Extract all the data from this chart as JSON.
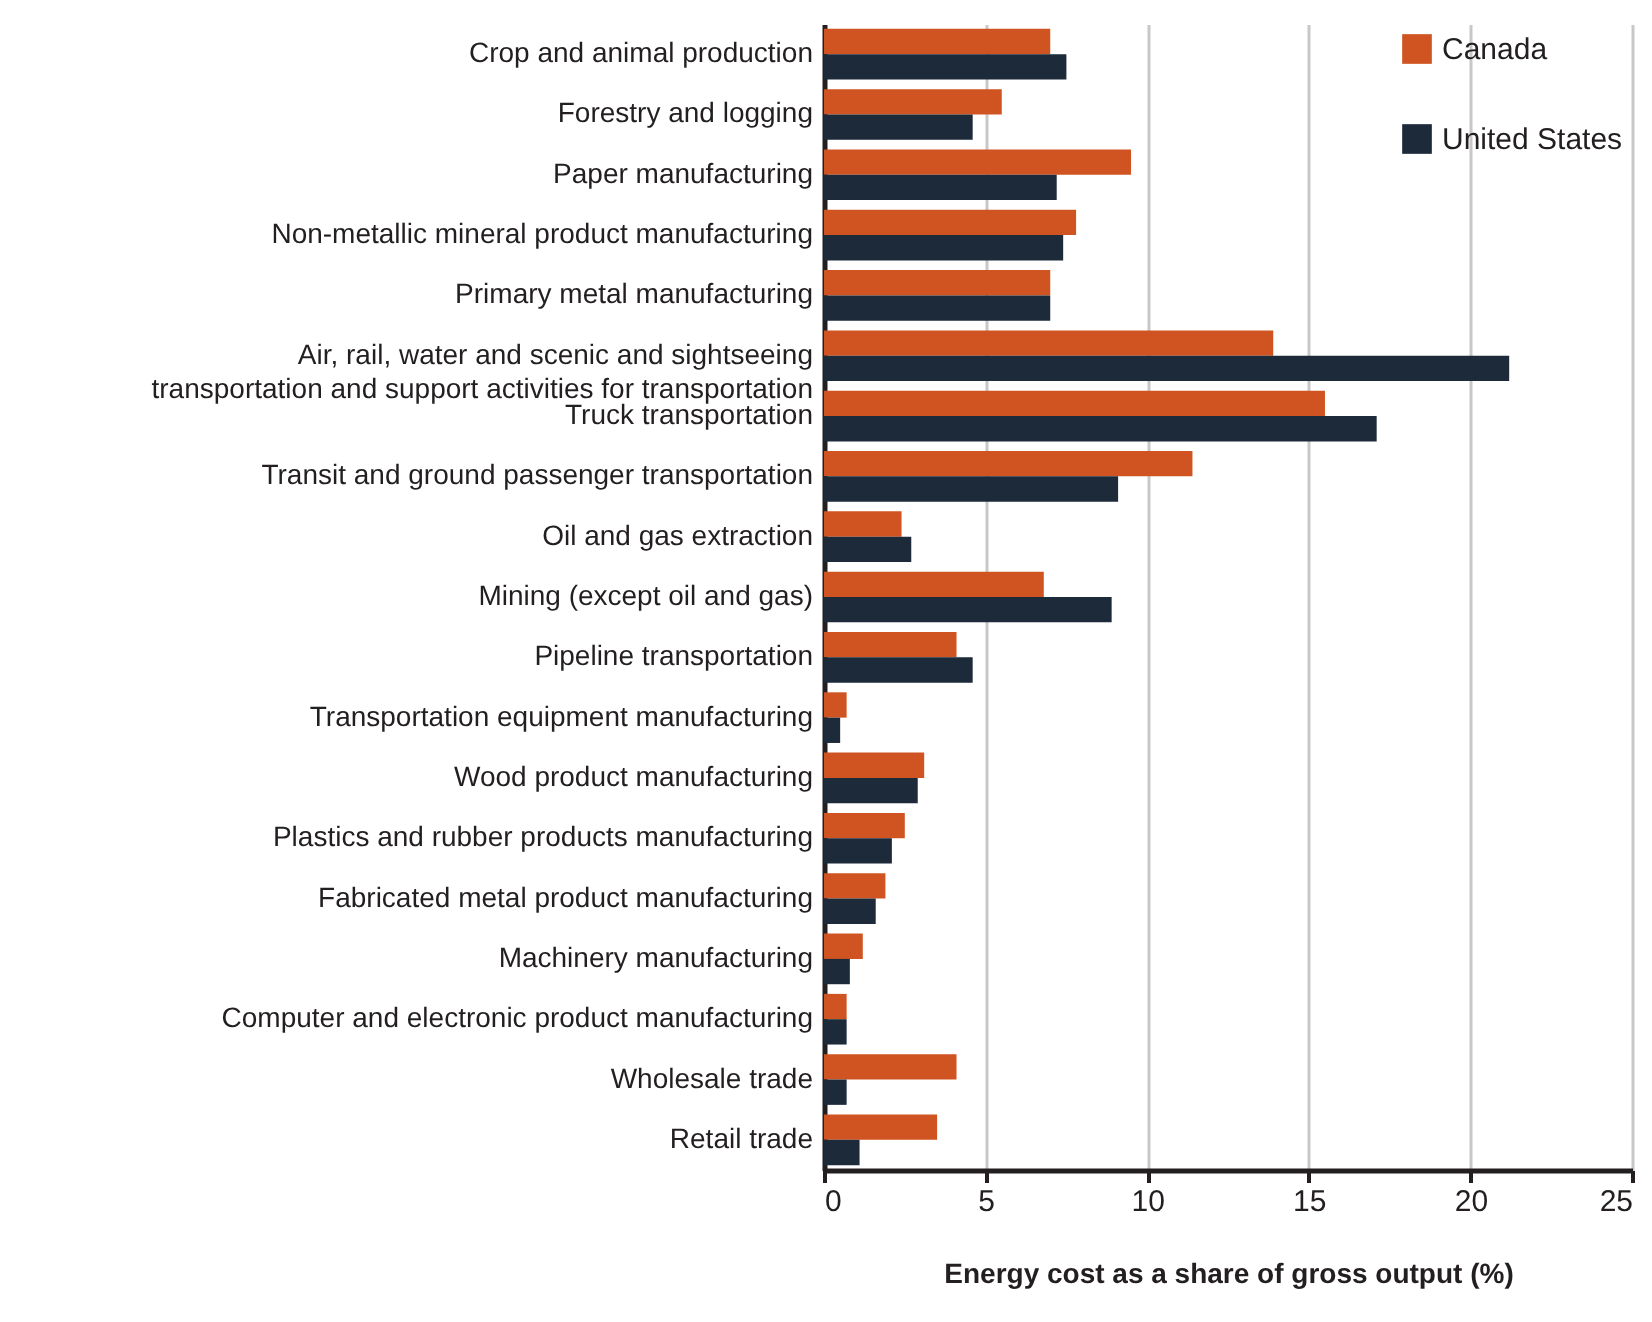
{
  "chart_data": {
    "type": "bar",
    "orientation": "horizontal",
    "xlabel": "Energy cost as a share of gross output (%)",
    "categories": [
      "Crop and animal production",
      "Forestry and logging",
      "Paper manufacturing",
      "Non-metallic mineral product manufacturing",
      "Primary metal manufacturing",
      "Air, rail, water and scenic and sightseeing transportation and support activities for transportation",
      "Truck transportation",
      "Transit and ground passenger transportation",
      "Oil and gas extraction",
      "Mining (except oil and gas)",
      "Pipeline transportation",
      "Transportation equipment manufacturing",
      "Wood product manufacturing",
      "Plastics and rubber products manufacturing",
      "Fabricated metal product manufacturing",
      "Machinery manufacturing",
      "Computer and electronic product manufacturing",
      "Wholesale trade",
      "Retail trade"
    ],
    "series": [
      {
        "name": "Canada",
        "color": "#d05421",
        "values": [
          7.0,
          5.5,
          9.5,
          7.8,
          7.0,
          13.9,
          15.5,
          11.4,
          2.4,
          6.8,
          4.1,
          0.7,
          3.1,
          2.5,
          1.9,
          1.2,
          0.7,
          4.1,
          3.5
        ]
      },
      {
        "name": "United States",
        "color": "#1c2a3a",
        "values": [
          7.5,
          4.6,
          7.2,
          7.4,
          7.0,
          21.2,
          17.1,
          9.1,
          2.7,
          8.9,
          4.6,
          0.5,
          2.9,
          2.1,
          1.6,
          0.8,
          0.7,
          0.7,
          1.1
        ]
      }
    ],
    "xlim": [
      0,
      25
    ],
    "xticks": [
      0,
      5,
      10,
      15,
      20,
      25
    ],
    "grid": "x",
    "legend": "top right"
  }
}
